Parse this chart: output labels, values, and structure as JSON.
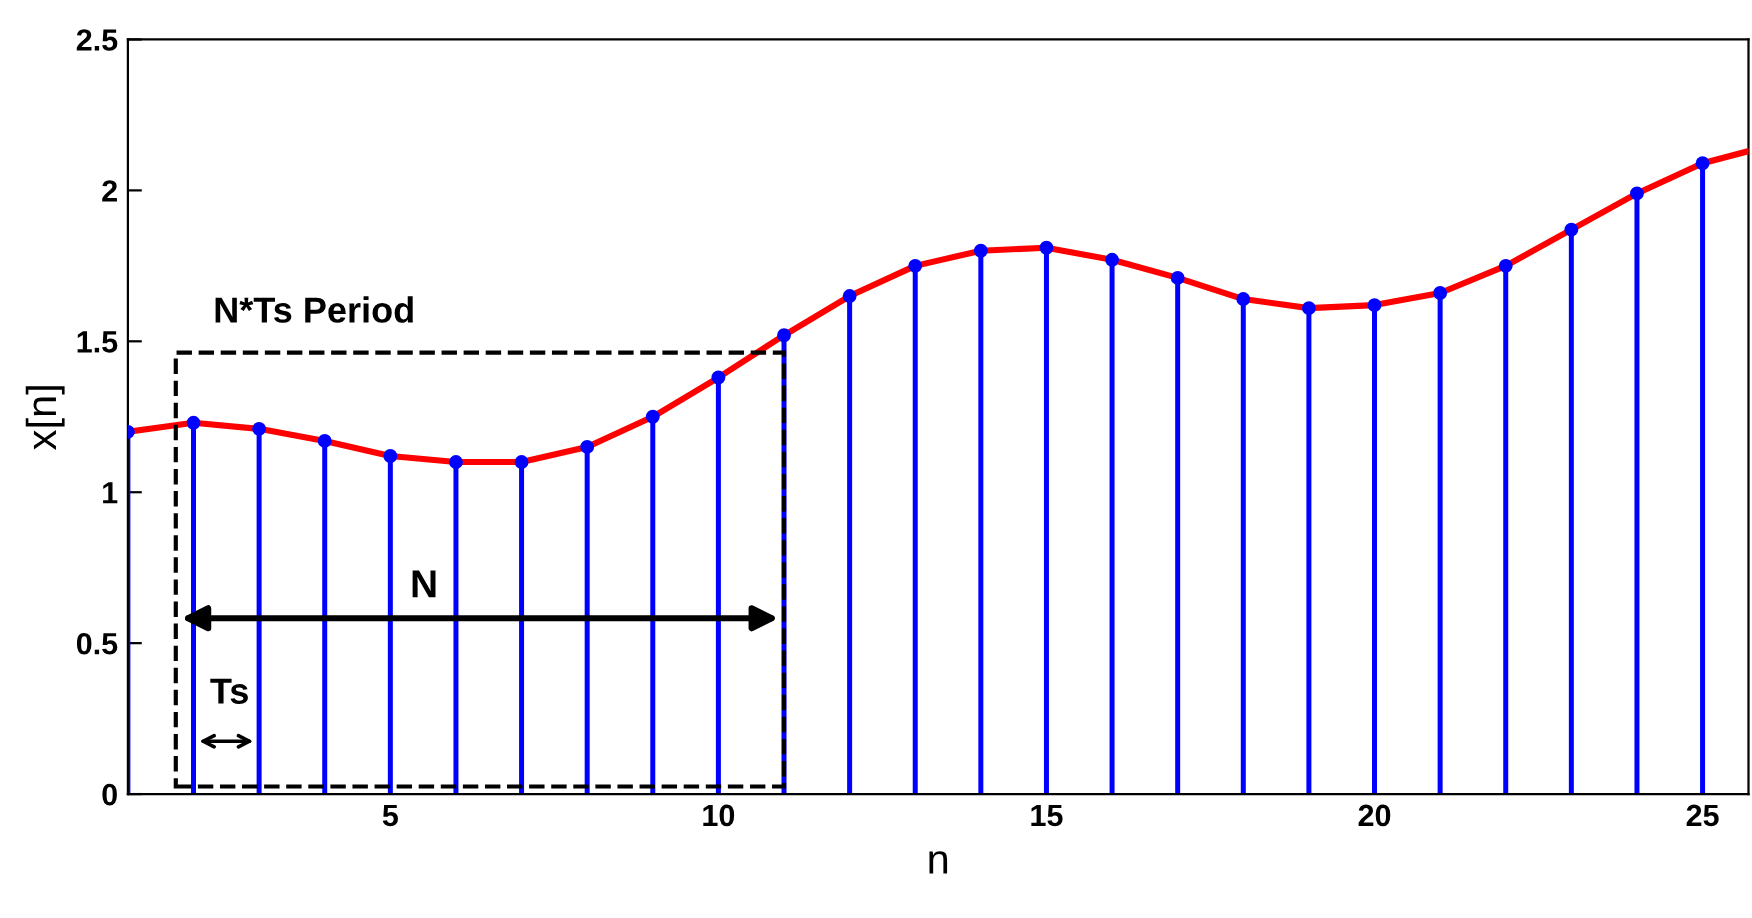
{
  "chart_data": {
    "type": "lollipop",
    "xlabel": "n",
    "ylabel": "x[n]",
    "x": [
      1,
      2,
      3,
      4,
      5,
      6,
      7,
      8,
      9,
      10,
      11,
      12,
      13,
      14,
      15,
      16,
      17,
      18,
      19,
      20,
      21,
      22,
      23,
      24,
      25
    ],
    "series": [
      {
        "color": "#0000ff",
        "marker": "circle",
        "values": [
          1.2,
          1.23,
          1.21,
          1.17,
          1.12,
          1.1,
          1.1,
          1.15,
          1.25,
          1.38,
          1.52,
          1.65,
          1.75,
          1.8,
          1.81,
          1.77,
          1.71,
          1.64,
          1.61,
          1.62,
          1.66,
          1.75,
          1.87,
          1.99,
          2.09
        ]
      },
      {
        "type": "line",
        "color": "#ff0000",
        "marker": "none",
        "line_style": "solid",
        "x": [
          1,
          2,
          3,
          4,
          5,
          6,
          7,
          8,
          9,
          10,
          11,
          12,
          13,
          14,
          15,
          16,
          17,
          18,
          19,
          20,
          21,
          22,
          23,
          24,
          25,
          25.7
        ],
        "values": [
          1.2,
          1.23,
          1.21,
          1.17,
          1.12,
          1.1,
          1.1,
          1.15,
          1.25,
          1.38,
          1.52,
          1.65,
          1.75,
          1.8,
          1.81,
          1.77,
          1.71,
          1.64,
          1.61,
          1.62,
          1.66,
          1.75,
          1.87,
          1.99,
          2.09,
          2.13
        ]
      }
    ],
    "annotations": [
      "N*Ts Period",
      "N",
      "Ts"
    ],
    "xlim": [
      1,
      25.7
    ],
    "ylim": [
      0,
      2.5
    ],
    "xticks": [
      5,
      10,
      15,
      20,
      25
    ],
    "yticks": [
      0,
      0.5,
      1,
      1.5,
      2,
      2.5
    ],
    "legend": false
  }
}
